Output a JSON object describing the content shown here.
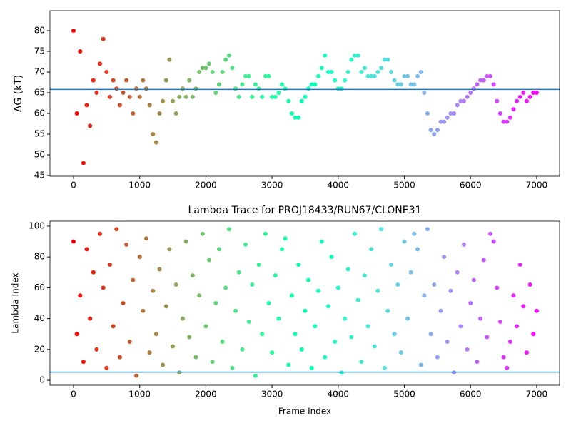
{
  "chart_data": [
    {
      "type": "scatter",
      "ylabel": "ΔG (kT)",
      "colormap": "rainbow_r",
      "hline": 65.8,
      "hline_color": "#1f77b4",
      "xlim": [
        -356,
        7346
      ],
      "ylim": [
        44.83,
        84.83
      ],
      "xticks": [
        0,
        1000,
        2000,
        3000,
        4000,
        5000,
        6000,
        7000
      ],
      "yticks": [
        45,
        50,
        55,
        60,
        65,
        70,
        75,
        80
      ],
      "x": [
        0,
        50,
        100,
        150,
        200,
        250,
        300,
        350,
        400,
        450,
        500,
        550,
        600,
        650,
        700,
        750,
        800,
        850,
        900,
        950,
        1000,
        1050,
        1100,
        1150,
        1200,
        1250,
        1300,
        1350,
        1400,
        1450,
        1500,
        1550,
        1600,
        1650,
        1700,
        1750,
        1800,
        1850,
        1900,
        1950,
        2000,
        2050,
        2100,
        2150,
        2200,
        2250,
        2300,
        2350,
        2400,
        2450,
        2500,
        2550,
        2600,
        2650,
        2700,
        2750,
        2800,
        2850,
        2900,
        2950,
        3000,
        3050,
        3100,
        3150,
        3200,
        3250,
        3300,
        3350,
        3400,
        3450,
        3500,
        3550,
        3600,
        3650,
        3700,
        3750,
        3800,
        3850,
        3900,
        3950,
        4000,
        4050,
        4100,
        4150,
        4200,
        4250,
        4300,
        4350,
        4400,
        4450,
        4500,
        4550,
        4600,
        4650,
        4700,
        4750,
        4800,
        4850,
        4900,
        4950,
        5000,
        5050,
        5100,
        5150,
        5200,
        5250,
        5300,
        5350,
        5400,
        5450,
        5500,
        5550,
        5600,
        5650,
        5700,
        5750,
        5800,
        5850,
        5900,
        5950,
        6000,
        6050,
        6100,
        6150,
        6200,
        6250,
        6300,
        6350,
        6400,
        6450,
        6500,
        6550,
        6600,
        6650,
        6700,
        6750,
        6800,
        6850,
        6900,
        6950,
        7000
      ],
      "values": [
        80,
        60,
        75,
        48,
        62,
        57,
        68,
        65,
        72,
        78,
        70,
        64,
        68,
        66,
        62,
        65,
        68,
        64,
        60,
        66,
        64,
        68,
        66,
        62,
        55,
        53,
        60,
        63,
        68,
        73,
        63,
        60,
        64,
        66,
        64,
        68,
        64,
        66,
        70,
        71,
        71,
        72,
        70,
        65,
        67,
        70,
        73,
        74,
        71,
        66,
        64,
        67,
        69,
        69,
        64,
        67,
        66,
        64,
        69,
        69,
        64,
        64,
        65,
        67,
        66,
        63,
        60,
        59,
        59,
        63,
        64,
        66,
        67,
        67,
        69,
        71,
        74,
        70,
        70,
        68,
        66,
        66,
        68,
        70,
        73,
        74,
        74,
        70,
        71,
        69,
        69,
        69,
        70,
        71,
        73,
        73,
        70,
        68,
        67,
        67,
        69,
        69,
        67,
        67,
        69,
        70,
        65,
        60,
        56,
        55,
        56,
        58,
        58,
        59,
        60,
        60,
        62,
        63,
        63,
        64,
        65,
        66,
        67,
        68,
        68,
        69,
        69,
        67,
        63,
        60,
        58,
        58,
        59,
        61,
        63,
        64,
        65,
        63,
        64,
        65,
        65
      ]
    },
    {
      "type": "scatter",
      "title": "Lambda Trace for PROJ18433/RUN67/CLONE31",
      "xlabel": "Frame Index",
      "ylabel": "Lambda Index",
      "colormap": "rainbow_r",
      "hline": 5.3,
      "hline_color": "#1f77b4",
      "xlim": [
        -356,
        7346
      ],
      "ylim": [
        -3.2,
        103.2
      ],
      "xticks": [
        0,
        1000,
        2000,
        3000,
        4000,
        5000,
        6000,
        7000
      ],
      "yticks": [
        0,
        20,
        40,
        60,
        80,
        100
      ],
      "x": [
        0,
        50,
        100,
        150,
        200,
        250,
        300,
        350,
        400,
        450,
        500,
        550,
        600,
        650,
        700,
        750,
        800,
        850,
        900,
        950,
        1000,
        1050,
        1100,
        1150,
        1200,
        1250,
        1300,
        1350,
        1400,
        1450,
        1500,
        1550,
        1600,
        1650,
        1700,
        1750,
        1800,
        1850,
        1900,
        1950,
        2000,
        2050,
        2100,
        2150,
        2200,
        2250,
        2300,
        2350,
        2400,
        2450,
        2500,
        2550,
        2600,
        2650,
        2700,
        2750,
        2800,
        2850,
        2900,
        2950,
        3000,
        3050,
        3100,
        3150,
        3200,
        3250,
        3300,
        3350,
        3400,
        3450,
        3500,
        3550,
        3600,
        3650,
        3700,
        3750,
        3800,
        3850,
        3900,
        3950,
        4000,
        4050,
        4100,
        4150,
        4200,
        4250,
        4300,
        4350,
        4400,
        4450,
        4500,
        4550,
        4600,
        4650,
        4700,
        4750,
        4800,
        4850,
        4900,
        4950,
        5000,
        5050,
        5100,
        5150,
        5200,
        5250,
        5300,
        5350,
        5400,
        5450,
        5500,
        5550,
        5600,
        5650,
        5700,
        5750,
        5800,
        5850,
        5900,
        5950,
        6000,
        6050,
        6100,
        6150,
        6200,
        6250,
        6300,
        6350,
        6400,
        6450,
        6500,
        6550,
        6600,
        6650,
        6700,
        6750,
        6800,
        6850,
        6900,
        6950,
        7000
      ],
      "values": [
        90,
        30,
        55,
        12,
        85,
        40,
        70,
        20,
        95,
        60,
        8,
        75,
        35,
        98,
        15,
        50,
        88,
        25,
        65,
        3,
        80,
        45,
        92,
        18,
        58,
        30,
        72,
        10,
        48,
        85,
        22,
        62,
        5,
        40,
        90,
        28,
        68,
        15,
        55,
        95,
        35,
        78,
        12,
        50,
        85,
        25,
        60,
        98,
        8,
        45,
        70,
        20,
        88,
        38,
        62,
        3,
        75,
        30,
        95,
        50,
        18,
        68,
        40,
        85,
        92,
        10,
        55,
        30,
        75,
        20,
        45,
        65,
        8,
        35,
        58,
        90,
        15,
        48,
        80,
        25,
        60,
        5,
        40,
        72,
        28,
        95,
        52,
        12,
        68,
        35,
        85,
        22,
        58,
        98,
        8,
        45,
        75,
        30,
        62,
        18,
        90,
        40,
        70,
        95,
        85,
        10,
        55,
        98,
        30,
        62,
        15,
        45,
        80,
        25,
        58,
        5,
        70,
        35,
        88,
        20,
        50,
        65,
        12,
        40,
        78,
        28,
        95,
        90,
        60,
        38,
        15,
        8,
        25,
        55,
        35,
        75,
        48,
        18,
        62,
        30,
        45
      ]
    }
  ]
}
